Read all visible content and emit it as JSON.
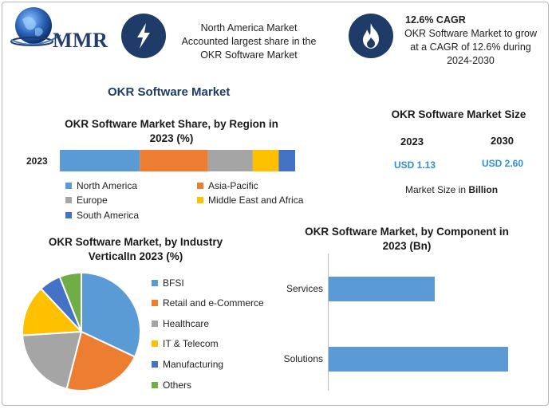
{
  "header": {
    "logo_text": "MMR",
    "box1": {
      "icon": "lightning-icon",
      "lines": [
        "North America Market",
        "Accounted largest share in the",
        "OKR Software Market"
      ]
    },
    "box2": {
      "icon": "flame-icon",
      "title": "12.6% CAGR",
      "lines": [
        "OKR Software Market to grow",
        "at a CAGR of 12.6% during",
        "2024-2030"
      ]
    }
  },
  "main_title": "OKR Software Market",
  "size_panel": {
    "title": "OKR Software Market Size",
    "year1": "2023",
    "value1": "USD 1.13",
    "year2": "2030",
    "value2": "USD 2.60",
    "note_prefix": "Market Size in ",
    "note_bold": "Billion"
  },
  "colors": {
    "blue_light": "#5b9bd5",
    "orange": "#ed7d31",
    "gray": "#a5a5a5",
    "yellow": "#ffc000",
    "blue_dark": "#4472c4",
    "green": "#70ad47",
    "navy": "#1f3b68"
  },
  "chart_data": [
    {
      "type": "bar",
      "stacked": true,
      "orientation": "horizontal",
      "title": "OKR Software Market Share, by Region in 2023 (%)",
      "title_lines": [
        "OKR Software Market Share, by Region in",
        "2023 (%)"
      ],
      "categories": [
        "2023"
      ],
      "series": [
        {
          "name": "North America",
          "values": [
            34
          ],
          "color": "#5b9bd5"
        },
        {
          "name": "Asia-Pacific",
          "values": [
            29
          ],
          "color": "#ed7d31"
        },
        {
          "name": "Europe",
          "values": [
            19
          ],
          "color": "#a5a5a5"
        },
        {
          "name": "Middle East and Africa",
          "values": [
            11
          ],
          "color": "#ffc000"
        },
        {
          "name": "South America",
          "values": [
            7
          ],
          "color": "#4472c4"
        }
      ],
      "legend": "bottom"
    },
    {
      "type": "pie",
      "title": "OKR Software Market, by Industry VerticalIn 2023 (%)",
      "title_lines": [
        "OKR Software Market, by Industry",
        "VerticalIn 2023 (%)"
      ],
      "labels": [
        "BFSI",
        "Retail and e-Commerce",
        "Healthcare",
        "IT & Telecom",
        "Manufacturing",
        "Others"
      ],
      "values": [
        32,
        22,
        20,
        14,
        6,
        6
      ],
      "colors": [
        "#5b9bd5",
        "#ed7d31",
        "#a5a5a5",
        "#ffc000",
        "#4472c4",
        "#70ad47"
      ],
      "legend": "right"
    },
    {
      "type": "bar",
      "orientation": "horizontal",
      "title": "OKR Software Market, by Component in 2023 (Bn)",
      "title_lines": [
        "OKR Software Market, by Component in",
        "2023 (Bn)"
      ],
      "categories": [
        "Services",
        "Solutions"
      ],
      "values": [
        0.42,
        0.71
      ],
      "color": "#5b9bd5",
      "xlim": [
        0,
        0.8
      ]
    }
  ]
}
